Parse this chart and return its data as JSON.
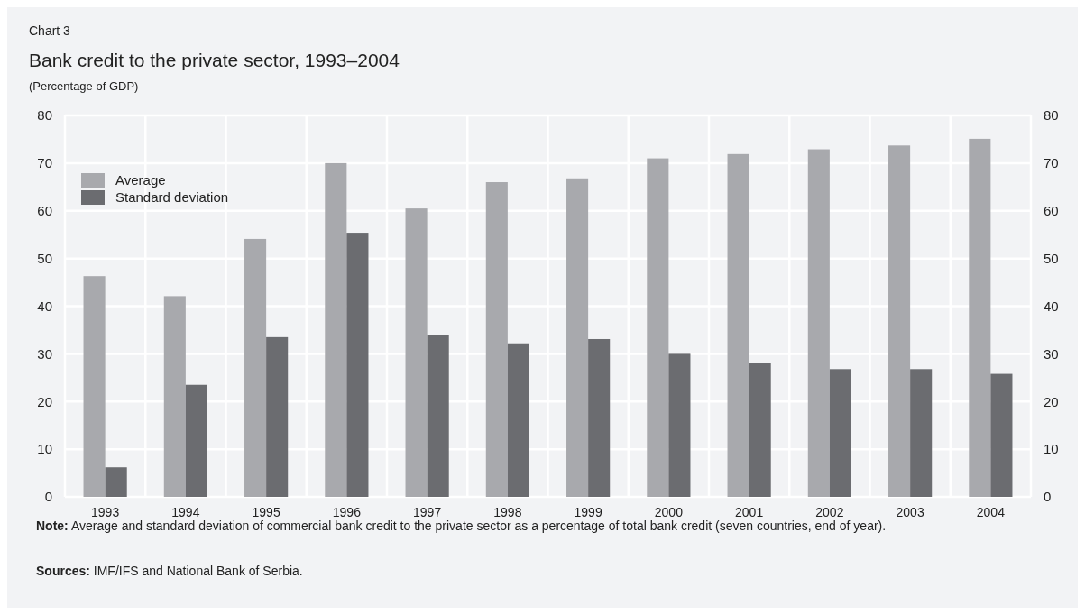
{
  "chart_data": {
    "type": "bar",
    "title": "Bank credit to the private sector, 1993–2004",
    "subtitle": "(Percentage of GDP)",
    "annotations": [
      "Chart 3",
      "Note: Average and standard deviation of commercial bank credit to the private sector as a percentage of total bank credit (seven countries, end of year).",
      "Sources: IMF/IFS and National Bank of Serbia."
    ],
    "categories": [
      "1993",
      "1994",
      "1995",
      "1996",
      "1997",
      "1998",
      "1999",
      "2000",
      "2001",
      "2002",
      "2003",
      "2004"
    ],
    "series": [
      {
        "name": "Average",
        "color": "#a8a9ad",
        "values": [
          46.3,
          42.1,
          54.1,
          70,
          60.5,
          66,
          66.8,
          71,
          71.9,
          72.9,
          73.7,
          75.1
        ]
      },
      {
        "name": "Standard deviation",
        "color": "#6b6c70",
        "values": [
          6.2,
          23.5,
          33.5,
          55.4,
          33.9,
          32.2,
          33.1,
          30,
          28,
          26.8,
          26.8,
          25.8
        ]
      }
    ],
    "ylim": [
      0,
      80
    ],
    "yticks": [
      0,
      10,
      20,
      30,
      40,
      50,
      60,
      70,
      80
    ],
    "y2lim": [
      0,
      80
    ],
    "y2ticks": [
      0,
      10,
      20,
      30,
      40,
      50,
      60,
      70,
      80
    ],
    "grid": true,
    "legend": "top left"
  }
}
